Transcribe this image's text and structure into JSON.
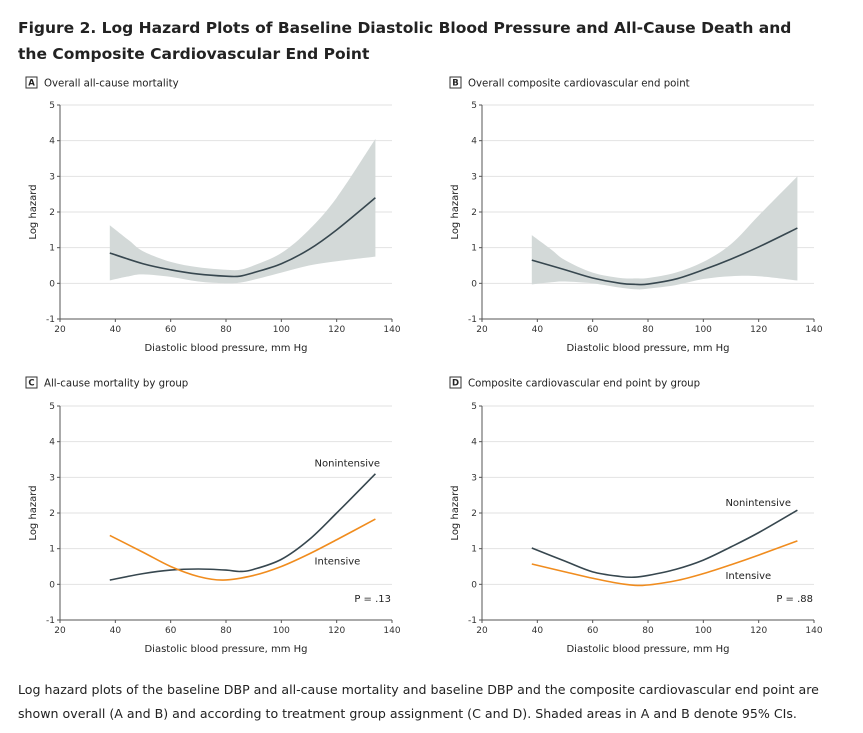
{
  "figure": {
    "title": "Figure 2.  Log Hazard Plots of Baseline Diastolic Blood Pressure and All-Cause Death and the Composite Cardiovascular End Point",
    "caption": "Log hazard plots of the baseline DBP and all-cause mortality and baseline DBP and the composite cardiovascular end point are shown overall (A and B) and according to treatment group assignment (C and D). Shaded areas in A and B denote 95% CIs."
  },
  "colors": {
    "line": "#37474f",
    "intensive": "#f08c1e",
    "ci_band": "#d3d9d8",
    "grid": "#e2e2e2"
  },
  "chart_data": [
    {
      "type": "line",
      "letter": "A",
      "title": "Overall all-cause mortality",
      "xlabel": "Diastolic blood pressure, mm Hg",
      "ylabel": "Log hazard",
      "xlim": [
        20,
        140
      ],
      "ylim": [
        -1,
        5
      ],
      "xticks": [
        "20",
        "40",
        "60",
        "80",
        "100",
        "120",
        "140"
      ],
      "yticks": [
        "-1",
        "0",
        "1",
        "2",
        "3",
        "4",
        "5"
      ],
      "grid": true,
      "series": [
        {
          "x": [
            38,
            50,
            60,
            70,
            80,
            85,
            90,
            100,
            110,
            120,
            134
          ],
          "y": [
            0.85,
            0.55,
            0.38,
            0.26,
            0.2,
            0.2,
            0.3,
            0.55,
            0.95,
            1.5,
            2.4
          ],
          "color": "line",
          "ci_x": [
            38,
            45,
            50,
            60,
            70,
            80,
            85,
            90,
            100,
            110,
            120,
            134
          ],
          "ci_upper": [
            1.63,
            1.2,
            0.9,
            0.6,
            0.45,
            0.38,
            0.38,
            0.5,
            0.85,
            1.5,
            2.4,
            4.05
          ],
          "ci_lower": [
            0.08,
            0.2,
            0.25,
            0.18,
            0.05,
            0.0,
            0.02,
            0.1,
            0.3,
            0.5,
            0.62,
            0.75
          ]
        }
      ]
    },
    {
      "type": "line",
      "letter": "B",
      "title": "Overall composite cardiovascular end point",
      "xlabel": "Diastolic blood pressure, mm Hg",
      "ylabel": "Log hazard",
      "xlim": [
        20,
        140
      ],
      "ylim": [
        -1,
        5
      ],
      "xticks": [
        "20",
        "40",
        "60",
        "80",
        "100",
        "120",
        "140"
      ],
      "yticks": [
        "-1",
        "0",
        "1",
        "2",
        "3",
        "4",
        "5"
      ],
      "grid": true,
      "series": [
        {
          "x": [
            38,
            50,
            60,
            70,
            76,
            80,
            90,
            100,
            110,
            120,
            134
          ],
          "y": [
            0.65,
            0.38,
            0.15,
            0.0,
            -0.03,
            -0.02,
            0.12,
            0.38,
            0.68,
            1.02,
            1.55
          ],
          "color": "line",
          "ci_x": [
            38,
            45,
            50,
            60,
            70,
            76,
            80,
            90,
            100,
            110,
            120,
            134
          ],
          "ci_upper": [
            1.35,
            0.95,
            0.65,
            0.3,
            0.15,
            0.14,
            0.15,
            0.3,
            0.6,
            1.1,
            1.9,
            3.0
          ],
          "ci_lower": [
            -0.03,
            0.03,
            0.05,
            0.0,
            -0.12,
            -0.17,
            -0.15,
            -0.05,
            0.12,
            0.2,
            0.2,
            0.08
          ]
        }
      ]
    },
    {
      "type": "line",
      "letter": "C",
      "title": "All-cause mortality by group",
      "xlabel": "Diastolic blood pressure, mm Hg",
      "ylabel": "Log hazard",
      "xlim": [
        20,
        140
      ],
      "ylim": [
        -1,
        5
      ],
      "xticks": [
        "20",
        "40",
        "60",
        "80",
        "100",
        "120",
        "140"
      ],
      "yticks": [
        "-1",
        "0",
        "1",
        "2",
        "3",
        "4",
        "5"
      ],
      "grid": true,
      "p_value": "P = .13",
      "series": [
        {
          "name": "Nonintensive",
          "x": [
            38,
            50,
            60,
            70,
            80,
            85,
            90,
            100,
            110,
            120,
            134
          ],
          "y": [
            0.12,
            0.3,
            0.4,
            0.43,
            0.4,
            0.36,
            0.42,
            0.7,
            1.25,
            2.0,
            3.1
          ],
          "color": "line"
        },
        {
          "name": "Intensive",
          "x": [
            38,
            50,
            60,
            70,
            79,
            90,
            100,
            110,
            120,
            134
          ],
          "y": [
            1.37,
            0.9,
            0.5,
            0.22,
            0.12,
            0.25,
            0.5,
            0.85,
            1.25,
            1.83
          ],
          "color": "intensive"
        }
      ]
    },
    {
      "type": "line",
      "letter": "D",
      "title": "Composite cardiovascular end point by group",
      "xlabel": "Diastolic blood pressure, mm Hg",
      "ylabel": "Log hazard",
      "xlim": [
        20,
        140
      ],
      "ylim": [
        -1,
        5
      ],
      "xticks": [
        "20",
        "40",
        "60",
        "80",
        "100",
        "120",
        "140"
      ],
      "yticks": [
        "-1",
        "0",
        "1",
        "2",
        "3",
        "4",
        "5"
      ],
      "grid": true,
      "p_value": "P = .88",
      "series": [
        {
          "name": "Nonintensive",
          "x": [
            38,
            50,
            60,
            70,
            75,
            80,
            90,
            100,
            110,
            120,
            134
          ],
          "y": [
            1.02,
            0.65,
            0.35,
            0.22,
            0.2,
            0.25,
            0.42,
            0.68,
            1.05,
            1.45,
            2.08
          ],
          "color": "line"
        },
        {
          "name": "Intensive",
          "x": [
            38,
            50,
            60,
            70,
            78,
            90,
            100,
            110,
            120,
            134
          ],
          "y": [
            0.57,
            0.35,
            0.17,
            0.02,
            -0.03,
            0.1,
            0.3,
            0.55,
            0.82,
            1.22
          ],
          "color": "intensive"
        }
      ]
    }
  ]
}
